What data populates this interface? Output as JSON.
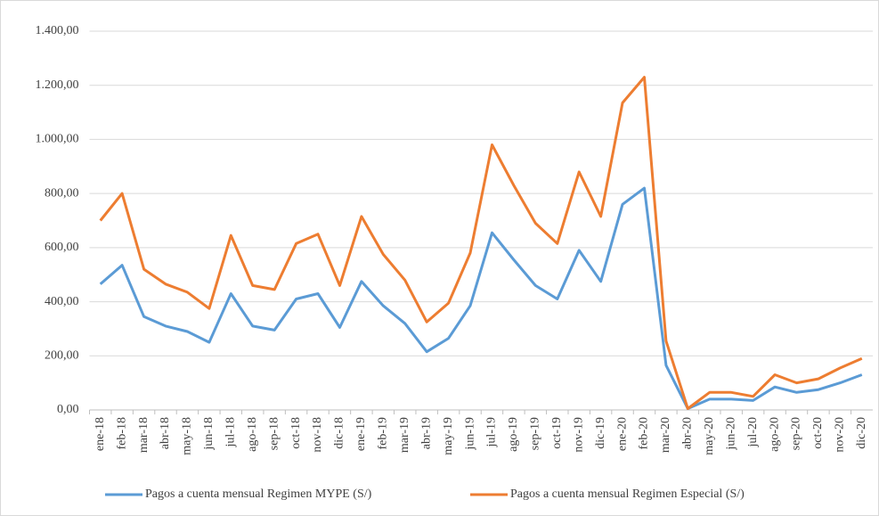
{
  "chart_data": {
    "type": "line",
    "categories": [
      "ene-18",
      "feb-18",
      "mar-18",
      "abr-18",
      "may-18",
      "jun-18",
      "jul-18",
      "ago-18",
      "sep-18",
      "oct-18",
      "nov-18",
      "dic-18",
      "ene-19",
      "feb-19",
      "mar-19",
      "abr-19",
      "may-19",
      "jun-19",
      "jul-19",
      "ago-19",
      "sep-19",
      "oct-19",
      "nov-19",
      "dic-19",
      "ene-20",
      "feb-20",
      "mar-20",
      "abr-20",
      "may-20",
      "jun-20",
      "jul-20",
      "ago-20",
      "sep-20",
      "oct-20",
      "nov-20",
      "dic-20"
    ],
    "series": [
      {
        "name": "Pagos a cuenta mensual Regimen MYPE (S/)",
        "color": "#5b9bd5",
        "values": [
          465,
          535,
          345,
          310,
          290,
          250,
          430,
          310,
          295,
          410,
          430,
          305,
          475,
          385,
          320,
          215,
          265,
          385,
          655,
          555,
          460,
          410,
          590,
          475,
          760,
          820,
          165,
          5,
          40,
          40,
          35,
          85,
          65,
          75,
          100,
          130
        ]
      },
      {
        "name": "Pagos a cuenta mensual Regimen Especial (S/)",
        "color": "#ed7d31",
        "values": [
          700,
          800,
          520,
          465,
          435,
          375,
          645,
          460,
          445,
          615,
          650,
          460,
          715,
          575,
          480,
          325,
          395,
          580,
          980,
          830,
          690,
          615,
          880,
          715,
          1135,
          1230,
          255,
          5,
          65,
          65,
          50,
          130,
          100,
          115,
          155,
          190
        ]
      }
    ],
    "ylim": [
      0,
      1400
    ],
    "yticks": [
      {
        "value": 0,
        "label": "0,00"
      },
      {
        "value": 200,
        "label": "200,00"
      },
      {
        "value": 400,
        "label": "400,00"
      },
      {
        "value": 600,
        "label": "600,00"
      },
      {
        "value": 800,
        "label": "800,00"
      },
      {
        "value": 1000,
        "label": "1.000,00"
      },
      {
        "value": 1200,
        "label": "1.200,00"
      },
      {
        "value": 1400,
        "label": "1.400,00"
      }
    ],
    "grid": true,
    "legend": "bottom"
  }
}
